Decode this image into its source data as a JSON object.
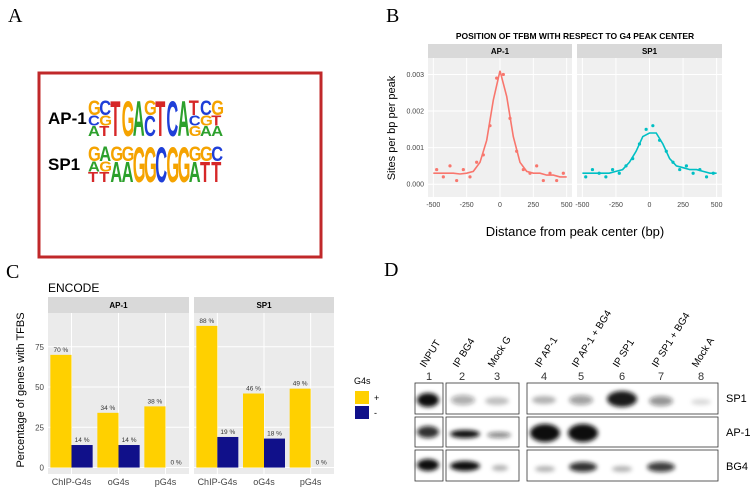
{
  "panels": {
    "a": "A",
    "b": "B",
    "c": "C",
    "d": "D"
  },
  "logo": {
    "colors": {
      "A": "#2ca02c",
      "C": "#1f3fd8",
      "G": "#f5a300",
      "T": "#d62728"
    },
    "motifs": [
      {
        "name": "AP-1",
        "columns": [
          [
            "G",
            "C",
            "A"
          ],
          [
            "C",
            "G",
            "T"
          ],
          [
            "T"
          ],
          [
            "G"
          ],
          [
            "A"
          ],
          [
            "G",
            "C"
          ],
          [
            "T"
          ],
          [
            "C"
          ],
          [
            "A"
          ],
          [
            "T",
            "C",
            "G"
          ],
          [
            "C",
            "G",
            "A"
          ],
          [
            "G",
            "T",
            "A"
          ]
        ]
      },
      {
        "name": "SP1",
        "columns": [
          [
            "G",
            "A",
            "T"
          ],
          [
            "A",
            "G",
            "T"
          ],
          [
            "G",
            "A"
          ],
          [
            "G",
            "A"
          ],
          [
            "G"
          ],
          [
            "G"
          ],
          [
            "C"
          ],
          [
            "G"
          ],
          [
            "G"
          ],
          [
            "G",
            "A"
          ],
          [
            "G",
            "T"
          ],
          [
            "C",
            "T"
          ]
        ]
      }
    ]
  },
  "chart_data": [
    {
      "type": "line",
      "title": "POSITION OF TFBM WITH RESPECT TO G4 PEAK CENTER",
      "xlabel": "Distance from peak center (bp)",
      "ylabel": "Sites per bp per peak",
      "xlim": [
        -540,
        540
      ],
      "ylim": [
        -0.00035,
        0.00345
      ],
      "xticks": [
        -500,
        -250,
        0,
        250,
        500
      ],
      "yticks": [
        {
          "value": 0,
          "label": "0.000"
        },
        {
          "value": 0.001,
          "label": "0.001"
        },
        {
          "value": 0.002,
          "label": "0.002"
        },
        {
          "value": 0.003,
          "label": "0.003"
        }
      ],
      "grid": true,
      "facets": [
        {
          "name": "AP-1",
          "color": "#F8766D",
          "x": [
            -500,
            -450,
            -400,
            -350,
            -300,
            -250,
            -200,
            -150,
            -100,
            -50,
            0,
            50,
            100,
            150,
            200,
            250,
            300,
            350,
            400,
            450,
            500
          ],
          "values": [
            0.0003,
            0.0003,
            0.0003,
            0.0003,
            0.00028,
            0.0003,
            0.00035,
            0.0006,
            0.0012,
            0.0023,
            0.0031,
            0.0024,
            0.0013,
            0.0006,
            0.00035,
            0.0003,
            0.0003,
            0.00025,
            0.00025,
            0.0002,
            0.0002
          ],
          "points_x": [
            -475,
            -425,
            -375,
            -325,
            -275,
            -225,
            -175,
            -125,
            -75,
            -25,
            25,
            75,
            125,
            175,
            225,
            275,
            325,
            375,
            425,
            475
          ],
          "points": [
            0.0004,
            0.0002,
            0.0005,
            0.0001,
            0.0004,
            0.0002,
            0.0006,
            0.0008,
            0.0016,
            0.0029,
            0.003,
            0.0018,
            0.0009,
            0.0004,
            0.0003,
            0.0005,
            0.0001,
            0.0003,
            0.0001,
            0.0003
          ]
        },
        {
          "name": "SP1",
          "color": "#00BFC4",
          "x": [
            -500,
            -450,
            -400,
            -350,
            -300,
            -250,
            -200,
            -150,
            -100,
            -50,
            0,
            50,
            100,
            150,
            200,
            250,
            300,
            350,
            400,
            450,
            500
          ],
          "values": [
            0.0003,
            0.0003,
            0.0003,
            0.0003,
            0.0003,
            0.00035,
            0.0004,
            0.0006,
            0.0009,
            0.0013,
            0.0014,
            0.0014,
            0.0011,
            0.0007,
            0.0005,
            0.00045,
            0.0004,
            0.0004,
            0.00035,
            0.0003,
            0.0003
          ],
          "points_x": [
            -475,
            -425,
            -375,
            -325,
            -275,
            -225,
            -175,
            -125,
            -75,
            -25,
            25,
            75,
            125,
            175,
            225,
            275,
            325,
            375,
            425,
            475
          ],
          "points": [
            0.0002,
            0.0004,
            0.0003,
            0.0002,
            0.0004,
            0.0003,
            0.0005,
            0.0007,
            0.0011,
            0.0015,
            0.0016,
            0.0012,
            0.0009,
            0.0006,
            0.0004,
            0.0005,
            0.0003,
            0.0004,
            0.0002,
            0.0003
          ]
        }
      ]
    },
    {
      "type": "bar",
      "title": "ENCODE",
      "ylabel": "Percentage of genes with TFBS",
      "ylim": [
        -4,
        96
      ],
      "yticks": [
        0,
        25,
        50,
        75
      ],
      "grid": true,
      "categories": [
        "ChIP-G4s",
        "oG4s",
        "pG4s"
      ],
      "facets": [
        "AP-1",
        "SP1"
      ],
      "legend_title": "G4s",
      "series": [
        {
          "name": "+",
          "color": "#FFD000",
          "values": [
            [
              70,
              34,
              38
            ],
            [
              88,
              46,
              49
            ]
          ],
          "value_labels": [
            [
              "70 %",
              "34 %",
              "38 %"
            ],
            [
              "88 %",
              "46 %",
              "49 %"
            ]
          ]
        },
        {
          "name": "-",
          "color": "#10108A",
          "values": [
            [
              14,
              14,
              0
            ],
            [
              19,
              18,
              0
            ]
          ],
          "value_labels": [
            [
              "14 %",
              "14 %",
              "0 %"
            ],
            [
              "19 %",
              "18 %",
              "0 %"
            ]
          ]
        }
      ]
    }
  ],
  "blot": {
    "lanes": [
      "INPUT",
      "IP BG4",
      "Mock G",
      "IP AP-1",
      "IP AP-1 + BG4",
      "IP SP1",
      "IP SP1 + BG4",
      "Mock A"
    ],
    "lane_numbers": [
      "1",
      "2",
      "3",
      "4",
      "5",
      "6",
      "7",
      "8"
    ],
    "rows": [
      "SP1",
      "AP-1",
      "BG4"
    ]
  }
}
